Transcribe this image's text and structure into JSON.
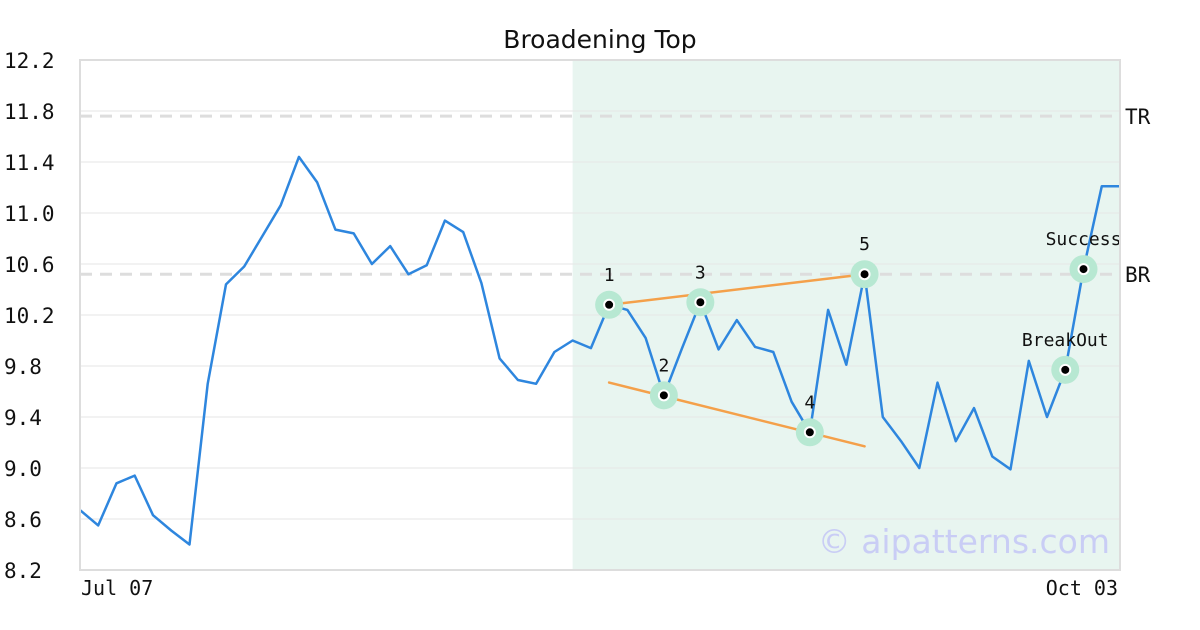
{
  "chart_data": {
    "type": "line",
    "title": "Broadening Top",
    "xlabel": "",
    "ylabel": "",
    "x_start_label": "Jul 07",
    "x_end_label": "Oct 03",
    "ylim": [
      8.2,
      12.2
    ],
    "yticks": [
      "12.2",
      "11.8",
      "11.4",
      "11.0",
      "10.6",
      "10.2",
      "9.8",
      "9.4",
      "9.0",
      "8.6",
      "8.2"
    ],
    "grid": true,
    "line_color": "#2e86de",
    "series": [
      {
        "values": [
          8.67,
          8.55,
          8.88,
          8.94,
          8.63,
          8.51,
          8.4,
          9.66,
          10.44,
          10.58,
          10.82,
          11.06,
          11.44,
          11.24,
          10.87,
          10.84,
          10.6,
          10.74,
          10.52,
          10.59,
          10.94,
          10.85,
          10.45,
          9.86,
          9.69,
          9.66,
          9.91,
          10.0,
          9.94,
          10.28,
          10.24,
          10.02,
          9.57,
          9.94,
          10.3,
          9.93,
          10.16,
          9.95,
          9.91,
          9.52,
          9.28,
          10.24,
          9.81,
          10.52,
          9.4,
          9.21,
          9.0,
          9.67,
          9.21,
          9.47,
          9.09,
          8.99,
          9.84,
          9.4,
          9.77,
          10.56,
          11.21,
          11.21
        ]
      }
    ],
    "reference_lines": [
      {
        "label": "TR",
        "value": 11.76
      },
      {
        "label": "BR",
        "value": 10.52
      }
    ],
    "highlight_region": {
      "from_index": 27,
      "to_index": 57,
      "color": "#e8f5f0"
    },
    "pattern_points": [
      {
        "label": "1",
        "index": 29,
        "value": 10.28
      },
      {
        "label": "2",
        "index": 32,
        "value": 9.57
      },
      {
        "label": "3",
        "index": 34,
        "value": 10.3
      },
      {
        "label": "4",
        "index": 40,
        "value": 9.28
      },
      {
        "label": "5",
        "index": 43,
        "value": 10.52
      },
      {
        "label": "BreakOut",
        "index": 54,
        "value": 9.77
      },
      {
        "label": "Success",
        "index": 55,
        "value": 10.56
      }
    ],
    "trend_lines": [
      {
        "from": {
          "index": 29,
          "value": 10.28
        },
        "to": {
          "index": 43,
          "value": 10.52
        }
      },
      {
        "from": {
          "index": 29,
          "value": 9.67
        },
        "to": {
          "index": 43,
          "value": 9.17
        }
      }
    ],
    "trend_color": "#f4a04a",
    "marker_halo_color": "#b7e8d2"
  },
  "watermark": "© aipatterns.com"
}
